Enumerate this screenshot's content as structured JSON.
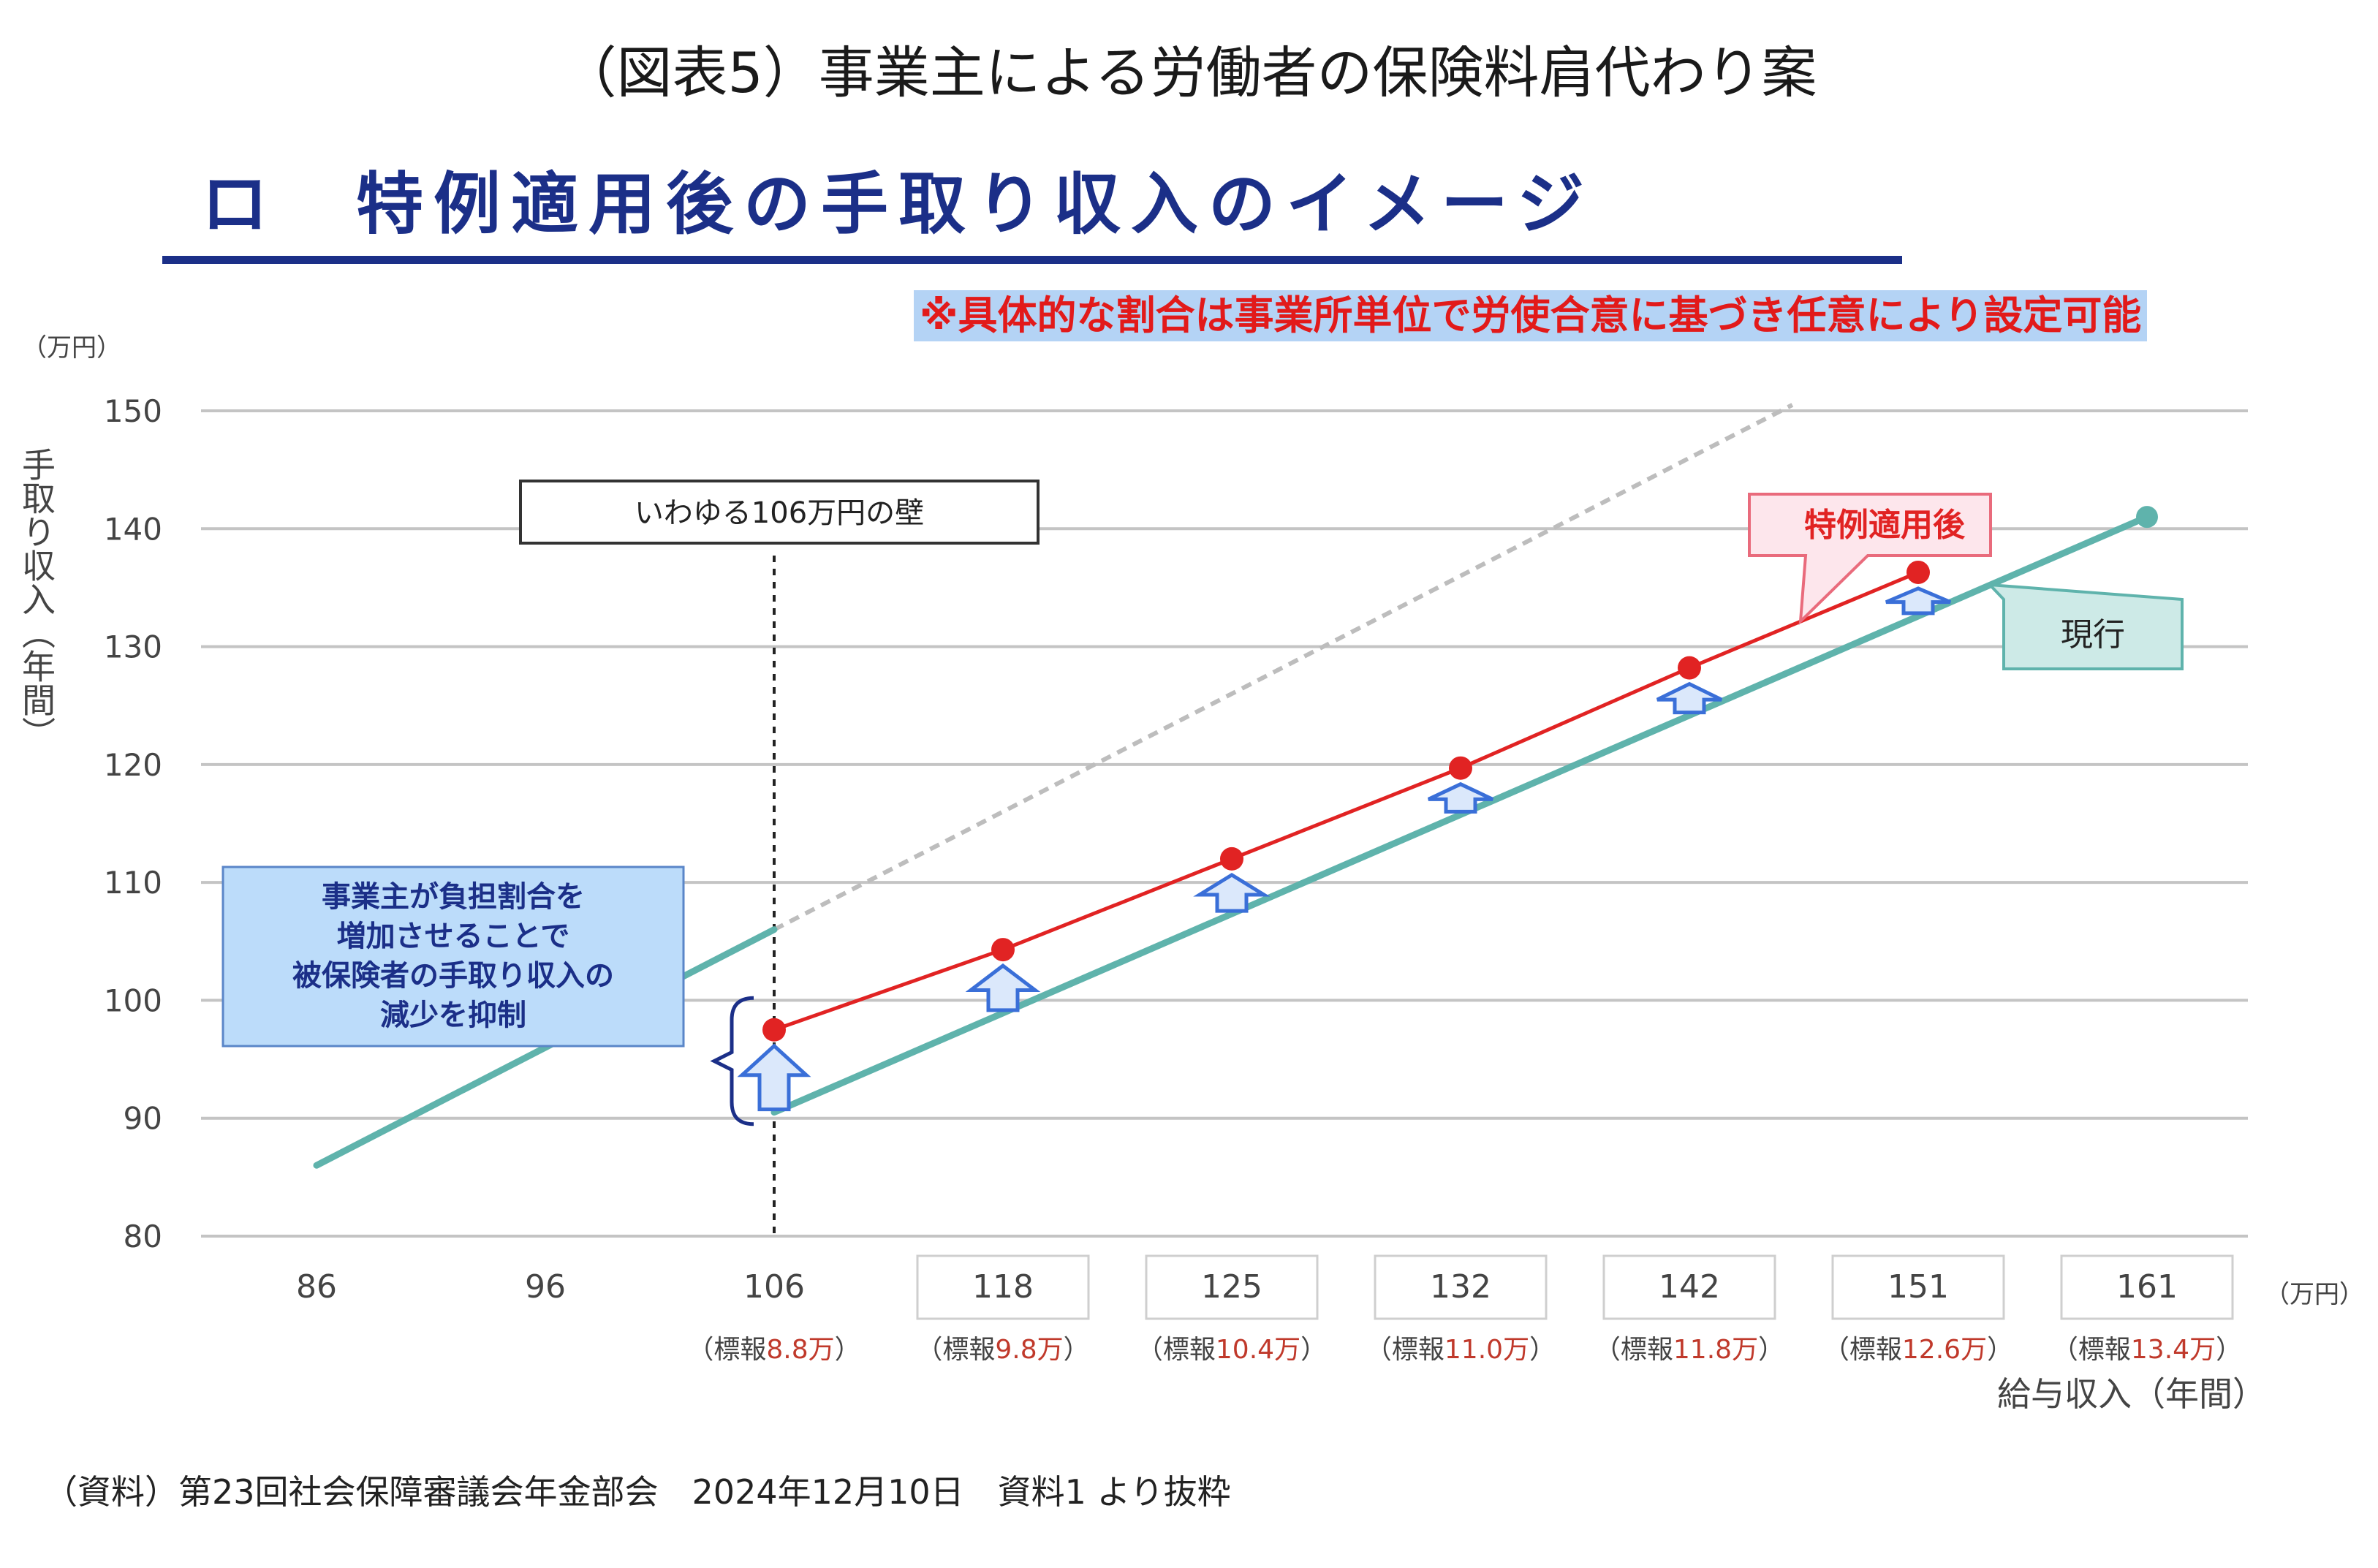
{
  "page": {
    "title": "（図表5）事業主による労働者の保険料肩代わり案",
    "subtitle": "ロ　特例適用後の手取り収入のイメージ",
    "note": "※具体的な割合は事業所単位で労使合意に基づき任意により設定可能",
    "source": "（資料）第23回社会保障審議会年金部会　2024年12月10日　資料1 より抜粋"
  },
  "colors": {
    "title_navy": "#1b2f88",
    "note_text_red": "#e21a1a",
    "note_bg": "#b4d3f5",
    "current_line_teal": "#5fb3ac",
    "special_line_red": "#e12323",
    "arrow_blue": "#3a6fd8",
    "dashed_gray": "#bdbdbd"
  },
  "chart_data": {
    "type": "line",
    "title": "",
    "y_unit": "（万円）",
    "ylabel": "手取り収入（年間）",
    "x_unit": "（万円）",
    "xlabel": "給与収入（年間）",
    "ylim": [
      80,
      150
    ],
    "yticks": [
      80,
      90,
      100,
      110,
      120,
      130,
      140,
      150
    ],
    "grid": true,
    "x_ticks": [
      {
        "label": "86",
        "sub": "",
        "sub_value": "",
        "boxed": false
      },
      {
        "label": "96",
        "sub": "",
        "sub_value": "",
        "boxed": false
      },
      {
        "label": "106",
        "sub": "（標報",
        "sub_value": "8.8万",
        "sub_end": "）",
        "boxed": false
      },
      {
        "label": "118",
        "sub": "（標報",
        "sub_value": "9.8万",
        "sub_end": "）",
        "boxed": true
      },
      {
        "label": "125",
        "sub": "（標報",
        "sub_value": "10.4万",
        "sub_end": "）",
        "boxed": true
      },
      {
        "label": "132",
        "sub": "（標報",
        "sub_value": "11.0万",
        "sub_end": "）",
        "boxed": true
      },
      {
        "label": "142",
        "sub": "（標報",
        "sub_value": "11.8万",
        "sub_end": "）",
        "boxed": true
      },
      {
        "label": "151",
        "sub": "（標報",
        "sub_value": "12.6万",
        "sub_end": "）",
        "boxed": true
      },
      {
        "label": "161",
        "sub": "（標報",
        "sub_value": "13.4万",
        "sub_end": "）",
        "boxed": true
      }
    ],
    "series": [
      {
        "name": "現行",
        "color": "#5fb3ac",
        "segments": [
          {
            "x": [
              0,
              2
            ],
            "y": [
              86,
              106
            ]
          },
          {
            "x": [
              2,
              8
            ],
            "y": [
              90.5,
              141
            ]
          }
        ]
      },
      {
        "name": "特例適用後",
        "color": "#e12323",
        "x": [
          2,
          3,
          4,
          5,
          6,
          7
        ],
        "y": [
          97.5,
          104.3,
          112,
          119.7,
          128.2,
          136.3
        ]
      }
    ],
    "reference_line": {
      "style": "dashed",
      "x": [
        2,
        6.45
      ],
      "y": [
        106,
        150.5
      ]
    },
    "wall": {
      "label": "いわゆる106万円の壁",
      "x_index": 2
    },
    "callout_left": [
      "事業主が負担割合を",
      "増加させることで",
      "被保険者の手取り収入の",
      "減少を抑制"
    ]
  }
}
